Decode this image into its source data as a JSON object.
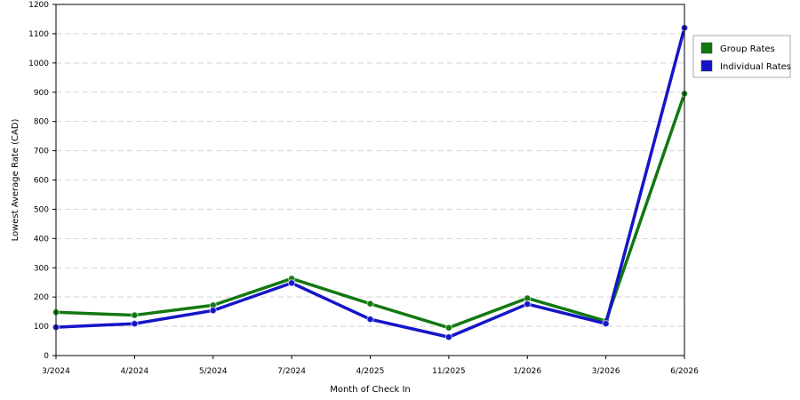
{
  "chart_data": {
    "type": "line",
    "title": "",
    "xlabel": "Month of Check In",
    "ylabel": "Lowest Average Rate (CAD)",
    "categories": [
      "3/2024",
      "4/2024",
      "5/2024",
      "7/2024",
      "4/2025",
      "11/2025",
      "1/2026",
      "3/2026",
      "6/2026"
    ],
    "ylim": [
      0,
      1200
    ],
    "yticks": [
      0,
      100,
      200,
      300,
      400,
      500,
      600,
      700,
      800,
      900,
      1000,
      1100,
      1200
    ],
    "grid": true,
    "legend_position": "right",
    "series": [
      {
        "name": "Group Rates",
        "color": "#127812",
        "values": [
          148,
          138,
          172,
          263,
          177,
          95,
          196,
          118,
          895
        ]
      },
      {
        "name": "Individual Rates",
        "color": "#1515c8",
        "values": [
          97,
          109,
          154,
          248,
          124,
          63,
          176,
          109,
          1120
        ]
      }
    ]
  }
}
